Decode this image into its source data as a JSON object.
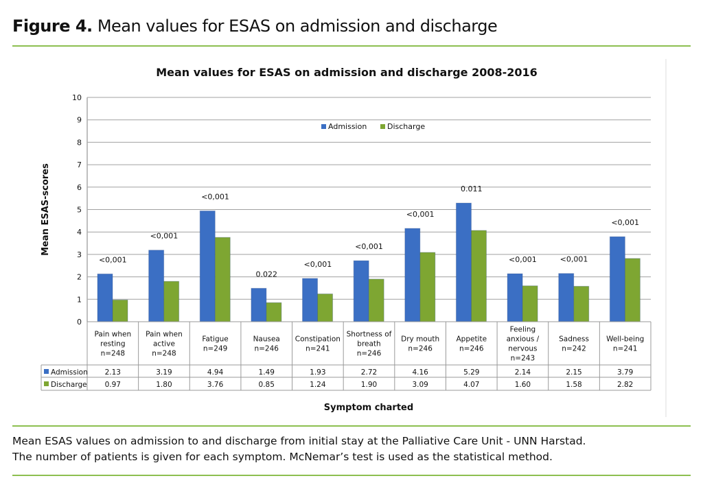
{
  "figure": {
    "label": "Figure 4.",
    "title": "Mean values for ESAS on admission and discharge",
    "caption_line1": "Mean ESAS values on admission to and discharge from initial stay at the Palliative Care Unit - UNN Harstad.",
    "caption_line2": "The number of patients is given for each symptom. McNemar’s test is used as the statistical method."
  },
  "chart_data": {
    "type": "bar",
    "title": "Mean values for ESAS on admission and discharge 2008-2016",
    "xlabel": "Symptom charted",
    "ylabel": "Mean ESAS-scores",
    "ylim": [
      0,
      10
    ],
    "yticks": [
      0,
      1,
      2,
      3,
      4,
      5,
      6,
      7,
      8,
      9,
      10
    ],
    "grid": true,
    "legend_placement": "top-center",
    "categories": [
      [
        "Pain when",
        "resting",
        "n=248"
      ],
      [
        "Pain when",
        "active",
        "n=248"
      ],
      [
        "Fatigue",
        "n=249"
      ],
      [
        "Nausea",
        "n=246"
      ],
      [
        "Constipation",
        "n=241"
      ],
      [
        "Shortness of",
        "breath",
        "n=246"
      ],
      [
        "Dry mouth",
        "n=246"
      ],
      [
        "Appetite",
        "n=246"
      ],
      [
        "Feeling",
        "anxious /",
        "nervous",
        "n=243"
      ],
      [
        "Sadness",
        "n=242"
      ],
      [
        "Well-being",
        "n=241"
      ]
    ],
    "series": [
      {
        "name": "Admission",
        "color": "#3b6fc4",
        "values": [
          2.13,
          3.19,
          4.94,
          1.49,
          1.93,
          2.72,
          4.16,
          5.29,
          2.14,
          2.15,
          3.79
        ],
        "labels": [
          "2.13",
          "3.19",
          "4.94",
          "1.49",
          "1.93",
          "2.72",
          "4.16",
          "5.29",
          "2.14",
          "2.15",
          "3.79"
        ]
      },
      {
        "name": "Discharge",
        "color": "#7ea632",
        "values": [
          0.97,
          1.8,
          3.76,
          0.85,
          1.24,
          1.9,
          3.09,
          4.07,
          1.6,
          1.58,
          2.82
        ],
        "labels": [
          "0.97",
          "1.80",
          "3.76",
          "0.85",
          "1.24",
          "1.90",
          "3.09",
          "4.07",
          "1.60",
          "1.58",
          "2.82"
        ]
      }
    ],
    "p_values": [
      "<0,001",
      "<0,001",
      "<0,001",
      "0.022",
      "<0,001",
      "<0,001",
      "<0,001",
      "0.011",
      "<0,001",
      "<0,001",
      "<0,001"
    ]
  },
  "colors": {
    "accent_line": "#8cbf4f",
    "grid": "#a0a0a0"
  }
}
